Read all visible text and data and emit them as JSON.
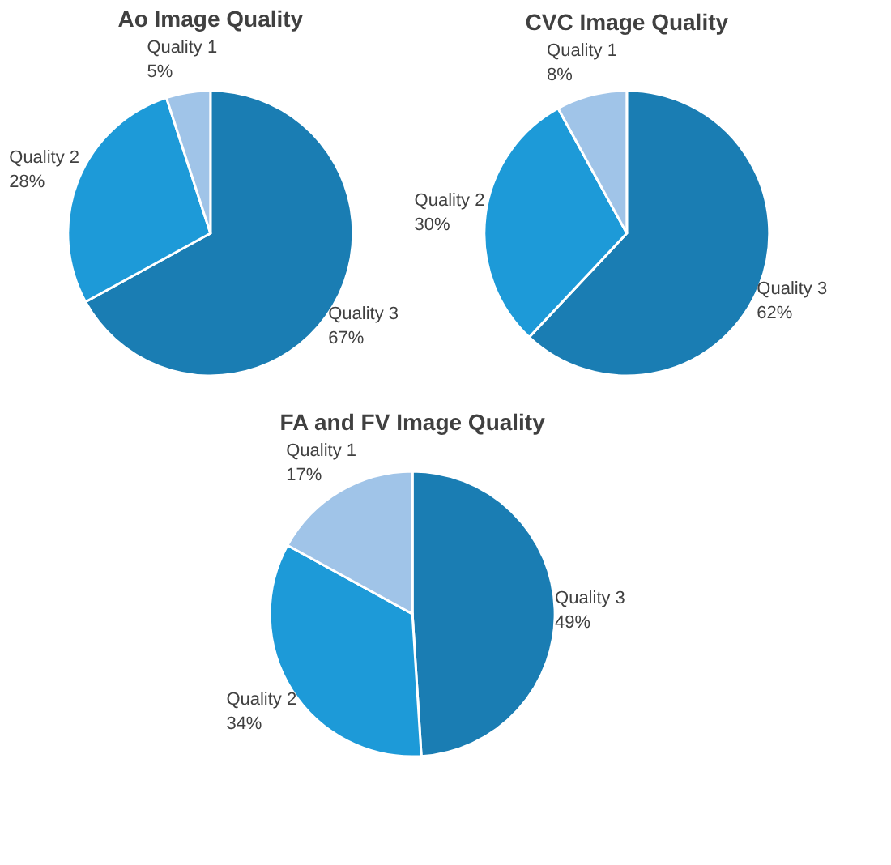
{
  "chart_data": [
    {
      "type": "pie",
      "title": "Ao Image Quality",
      "categories": [
        "Quality 3",
        "Quality 2",
        "Quality 1"
      ],
      "values": [
        67,
        28,
        5
      ],
      "colors": [
        "#1a7db3",
        "#1d9ad8",
        "#a0c4e8"
      ],
      "value_labels": [
        "67%",
        "28%",
        "5%"
      ]
    },
    {
      "type": "pie",
      "title": "CVC Image Quality",
      "categories": [
        "Quality 3",
        "Quality 2",
        "Quality 1"
      ],
      "values": [
        62,
        30,
        8
      ],
      "colors": [
        "#1a7db3",
        "#1d9ad8",
        "#a0c4e8"
      ],
      "value_labels": [
        "62%",
        "30%",
        "8%"
      ]
    },
    {
      "type": "pie",
      "title": "FA and FV Image Quality",
      "categories": [
        "Quality 3",
        "Quality 2",
        "Quality 1"
      ],
      "values": [
        49,
        34,
        17
      ],
      "colors": [
        "#1a7db3",
        "#1d9ad8",
        "#a0c4e8"
      ],
      "value_labels": [
        "49%",
        "34%",
        "17%"
      ]
    }
  ]
}
